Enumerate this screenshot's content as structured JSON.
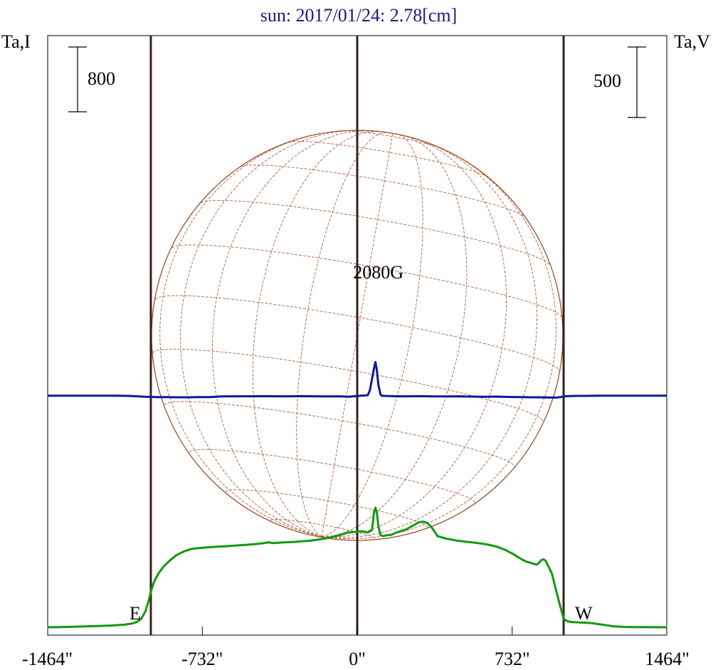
{
  "chart_data": {
    "type": "line",
    "title": "sun: 2017/01/24: 2.78[cm]",
    "ylabel_left": "Ta,I",
    "ylabel_right": "Ta,V",
    "xlabel": "",
    "x_ticks": [
      "-1464\"",
      "-732\"",
      "0\"",
      "732\"",
      "1464\""
    ],
    "x_tick_values": [
      -1464,
      -732,
      0,
      732,
      1464
    ],
    "xlim": [
      -1464,
      1464
    ],
    "scale_bar_left": "800",
    "scale_bar_right": "500",
    "limb_labels": {
      "east": "E",
      "west": "W"
    },
    "vertical_markers": [
      -975,
      0,
      975
    ],
    "annotation": {
      "text": "2080G",
      "x": 86
    },
    "colors": {
      "title": "#1a1a7a",
      "stokes_i": "#119911",
      "stokes_v": "#0a1a9a",
      "markers": "#3a1f1f",
      "grid": "#b06040"
    },
    "series": [
      {
        "name": "",
        "color": "#119911",
        "x": [
          -1464,
          -1400,
          -1340,
          -1250,
          -1160,
          -1100,
          -1060,
          -1040,
          -1020,
          -1000,
          -985,
          -975,
          -960,
          -940,
          -915,
          -885,
          -855,
          -820,
          -780,
          -740,
          -700,
          -660,
          -620,
          -580,
          -540,
          -500,
          -460,
          -430,
          -420,
          -400,
          -380,
          -340,
          -300,
          -260,
          -230,
          -200,
          -160,
          -120,
          -80,
          -50,
          -20,
          0,
          5,
          20,
          50,
          70,
          75,
          80,
          86,
          93,
          100,
          110,
          120,
          130,
          140,
          160,
          185,
          230,
          260,
          290,
          310,
          330,
          350,
          380,
          420,
          470,
          520,
          570,
          620,
          660,
          700,
          740,
          760,
          780,
          800,
          820,
          840,
          850,
          860,
          870,
          880,
          890,
          900,
          920,
          940,
          960,
          975,
          985,
          995,
          1005,
          1015,
          1030,
          1050,
          1070,
          1090,
          1110,
          1130,
          1150,
          1170,
          1190,
          1210,
          1260,
          1320,
          1400,
          1464
        ],
        "y": [
          0,
          3,
          7,
          13,
          22,
          32,
          48,
          68,
          105,
          200,
          330,
          440,
          560,
          660,
          750,
          825,
          890,
          935,
          970,
          980,
          988,
          995,
          1000,
          1008,
          1015,
          1023,
          1033,
          1043,
          1050,
          1040,
          1043,
          1050,
          1053,
          1063,
          1067,
          1077,
          1092,
          1113,
          1140,
          1166,
          1177,
          1177,
          1186,
          1186,
          1170,
          1200,
          1320,
          1430,
          1477,
          1410,
          1250,
          1140,
          1125,
          1130,
          1137,
          1140,
          1170,
          1207,
          1250,
          1295,
          1305,
          1290,
          1240,
          1125,
          1095,
          1070,
          1055,
          1040,
          1020,
          995,
          955,
          900,
          865,
          835,
          810,
          795,
          778,
          776,
          800,
          830,
          840,
          820,
          770,
          660,
          450,
          250,
          110,
          85,
          75,
          68,
          65,
          62,
          59,
          57,
          55,
          50,
          43,
          35,
          28,
          20,
          12,
          4,
          2,
          1,
          0
        ]
      },
      {
        "name": "",
        "color": "#0a1a9a",
        "x": [
          -1464,
          -1300,
          -1140,
          -1080,
          -1040,
          -1000,
          -975,
          -950,
          -900,
          -850,
          -800,
          -760,
          -700,
          -640,
          -600,
          -560,
          -500,
          -440,
          -380,
          -320,
          -260,
          -200,
          -140,
          -80,
          -40,
          -20,
          -5,
          10,
          50,
          60,
          70,
          80,
          86,
          92,
          100,
          110,
          115,
          125,
          160,
          200,
          240,
          300,
          360,
          420,
          480,
          540,
          600,
          660,
          700,
          740,
          780,
          820,
          860,
          900,
          940,
          960,
          975,
          990,
          1010,
          1040,
          1080,
          1140,
          1200,
          1280,
          1360,
          1420,
          1464
        ],
        "y": [
          1,
          1,
          1.5,
          0,
          -3,
          -6,
          -7,
          -9,
          -9,
          -10,
          -10,
          -9,
          -9,
          -4,
          -3,
          -3,
          -3,
          -2,
          -3,
          -3,
          -2,
          -3,
          -4,
          -3,
          -6,
          -3,
          -1,
          0,
          5,
          40,
          120,
          200,
          240,
          190,
          80,
          10,
          2,
          0,
          -2,
          -3,
          -3,
          -2,
          -4,
          -4,
          -3,
          -5,
          -6,
          -5,
          -7,
          -8,
          -9,
          -10,
          -10,
          -11,
          -12,
          -9,
          -5,
          -2,
          -1,
          0,
          0,
          1,
          1,
          1,
          1,
          1,
          1
        ]
      }
    ]
  }
}
